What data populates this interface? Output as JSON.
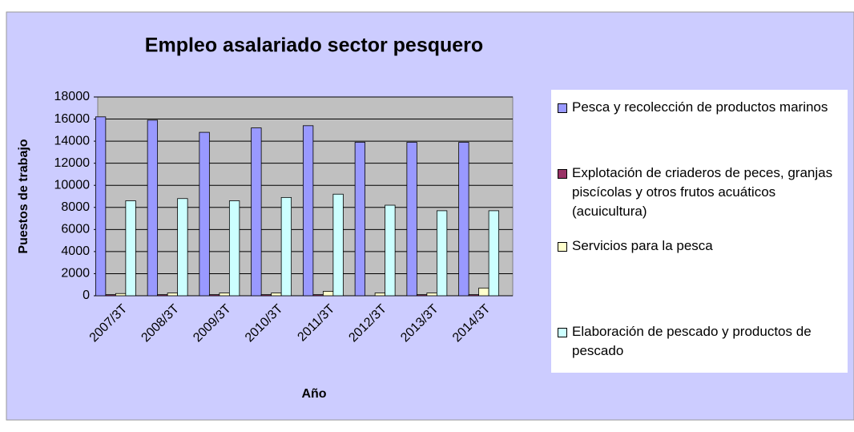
{
  "chart_data": {
    "type": "bar",
    "title": "Empleo asalariado sector pesquero",
    "x_label": "Año",
    "y_label": "Puestos de trabajo",
    "categories": [
      "2007/3T",
      "2008/3T",
      "2009/3T",
      "2010/3T",
      "2011/3T",
      "2012/3T",
      "2013/3T",
      "2014/3T"
    ],
    "series": [
      {
        "name": "Pesca y recolección de productos marinos",
        "color": "#9999ff",
        "values": [
          16200,
          15900,
          14800,
          15200,
          15400,
          13900,
          13900,
          13900
        ]
      },
      {
        "name": "Explotación de criaderos de peces, granjas piscícolas y otros frutos acuáticos (acuicultura)",
        "color": "#993366",
        "values": [
          100,
          100,
          100,
          100,
          100,
          0,
          100,
          100
        ]
      },
      {
        "name": "Servicios para la pesca",
        "color": "#ffffcc",
        "values": [
          200,
          250,
          250,
          250,
          400,
          250,
          250,
          700
        ]
      },
      {
        "name": "Elaboración de pescado y productos de pescado",
        "color": "#ccffff",
        "values": [
          8600,
          8800,
          8600,
          8900,
          9200,
          8200,
          7700,
          7700
        ]
      }
    ],
    "ylim": [
      0,
      18000
    ],
    "yticks": [
      0,
      2000,
      4000,
      6000,
      8000,
      10000,
      12000,
      14000,
      16000,
      18000
    ],
    "grid": true
  }
}
